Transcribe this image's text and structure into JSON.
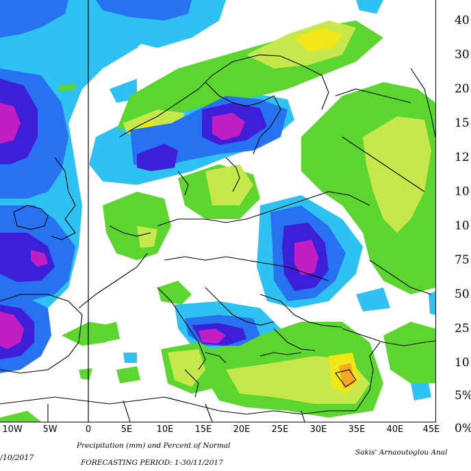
{
  "legend": {
    "scale_labels": [
      "40",
      "30",
      "20",
      "15",
      "12",
      "10",
      "10",
      "75",
      "50",
      "25",
      "10",
      "5%",
      "0%"
    ]
  },
  "axis": {
    "lon_labels": [
      "10W",
      "5W",
      "0",
      "5E",
      "10E",
      "15E",
      "20E",
      "25E",
      "30E",
      "35E",
      "40E",
      "45E"
    ]
  },
  "footer": {
    "date": "/10/2017",
    "caption": "Precipitation (mm) and Percent of Normal",
    "period": "FORECASTING PERIOD: 1-30/11/2017",
    "author": "Sakis' Arnaoutoglou Anal"
  },
  "colors": {
    "light_green": "#5cd62e",
    "yellow_green": "#c6e84a",
    "yellow": "#f2e617",
    "orange": "#f5a623",
    "light_blue": "#2ec2f2",
    "blue": "#2672f0",
    "dark_blue": "#3c1fd6",
    "magenta": "#c21ec6",
    "land_border": "#000000"
  }
}
